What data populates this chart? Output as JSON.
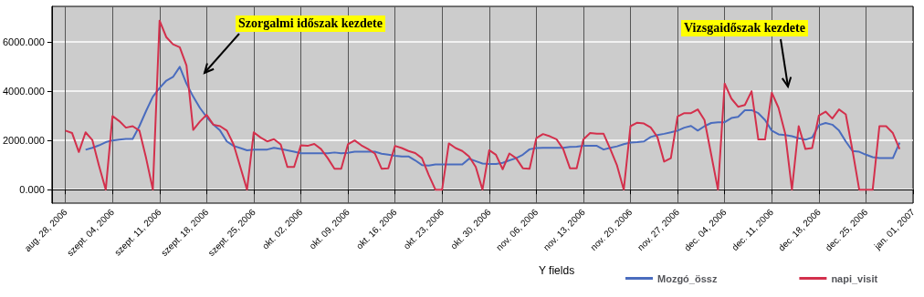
{
  "chart_data": {
    "type": "line",
    "x": [
      "2006-08-28",
      "2006-08-29",
      "2006-08-30",
      "2006-08-31",
      "2006-09-01",
      "2006-09-02",
      "2006-09-03",
      "2006-09-04",
      "2006-09-05",
      "2006-09-06",
      "2006-09-07",
      "2006-09-08",
      "2006-09-09",
      "2006-09-10",
      "2006-09-11",
      "2006-09-12",
      "2006-09-13",
      "2006-09-14",
      "2006-09-15",
      "2006-09-16",
      "2006-09-17",
      "2006-09-18",
      "2006-09-19",
      "2006-09-20",
      "2006-09-21",
      "2006-09-22",
      "2006-09-23",
      "2006-09-24",
      "2006-09-25",
      "2006-09-26",
      "2006-09-27",
      "2006-09-28",
      "2006-09-29",
      "2006-09-30",
      "2006-10-01",
      "2006-10-02",
      "2006-10-03",
      "2006-10-04",
      "2006-10-05",
      "2006-10-06",
      "2006-10-07",
      "2006-10-08",
      "2006-10-09",
      "2006-10-10",
      "2006-10-11",
      "2006-10-12",
      "2006-10-13",
      "2006-10-14",
      "2006-10-15",
      "2006-10-16",
      "2006-10-17",
      "2006-10-18",
      "2006-10-19",
      "2006-10-20",
      "2006-10-21",
      "2006-10-22",
      "2006-10-23",
      "2006-10-24",
      "2006-10-25",
      "2006-10-26",
      "2006-10-27",
      "2006-10-28",
      "2006-10-29",
      "2006-10-30",
      "2006-10-31",
      "2006-11-01",
      "2006-11-02",
      "2006-11-03",
      "2006-11-04",
      "2006-11-05",
      "2006-11-06",
      "2006-11-07",
      "2006-11-08",
      "2006-11-09",
      "2006-11-10",
      "2006-11-11",
      "2006-11-12",
      "2006-11-13",
      "2006-11-14",
      "2006-11-15",
      "2006-11-16",
      "2006-11-17",
      "2006-11-18",
      "2006-11-19",
      "2006-11-20",
      "2006-11-21",
      "2006-11-22",
      "2006-11-23",
      "2006-11-24",
      "2006-11-25",
      "2006-11-26",
      "2006-11-27",
      "2006-11-28",
      "2006-11-29",
      "2006-11-30",
      "2006-12-01",
      "2006-12-02",
      "2006-12-03",
      "2006-12-04",
      "2006-12-05",
      "2006-12-06",
      "2006-12-07",
      "2006-12-08",
      "2006-12-09",
      "2006-12-10",
      "2006-12-11",
      "2006-12-12",
      "2006-12-13",
      "2006-12-14",
      "2006-12-15",
      "2006-12-16",
      "2006-12-17",
      "2006-12-18",
      "2006-12-19",
      "2006-12-20",
      "2006-12-21",
      "2006-12-22",
      "2006-12-23",
      "2006-12-24",
      "2006-12-25",
      "2006-12-26",
      "2006-12-27",
      "2006-12-28",
      "2006-12-29",
      "2006-12-30"
    ],
    "series": [
      {
        "name": "Mozgó_össz",
        "color": "#4a6cbe",
        "values": [
          null,
          null,
          null,
          1620,
          1700,
          1800,
          1930,
          2000,
          2030,
          2060,
          2060,
          2580,
          3200,
          3780,
          4130,
          4430,
          4580,
          4990,
          4310,
          3780,
          3320,
          2950,
          2640,
          2400,
          1960,
          1780,
          1690,
          1600,
          1630,
          1630,
          1630,
          1700,
          1650,
          1600,
          1540,
          1480,
          1480,
          1480,
          1480,
          1480,
          1510,
          1480,
          1500,
          1540,
          1540,
          1540,
          1540,
          1460,
          1420,
          1380,
          1350,
          1350,
          1190,
          1000,
          980,
          1020,
          1020,
          1020,
          1020,
          1020,
          1260,
          1160,
          1060,
          1040,
          1040,
          1090,
          1190,
          1280,
          1420,
          1640,
          1690,
          1700,
          1700,
          1700,
          1700,
          1740,
          1750,
          1780,
          1780,
          1780,
          1630,
          1700,
          1760,
          1850,
          1910,
          1930,
          1960,
          2140,
          2220,
          2270,
          2330,
          2400,
          2520,
          2590,
          2400,
          2580,
          2710,
          2740,
          2740,
          2910,
          2960,
          3230,
          3230,
          3110,
          2830,
          2400,
          2250,
          2220,
          2170,
          2090,
          2030,
          2120,
          2620,
          2710,
          2640,
          2400,
          1960,
          1570,
          1540,
          1420,
          1320,
          1280,
          1280,
          1280,
          1910
        ]
      },
      {
        "name": "napi_visit",
        "color": "#d3304c",
        "values": [
          2400,
          2300,
          1530,
          2330,
          2020,
          970,
          0,
          2990,
          2790,
          2520,
          2580,
          2400,
          1280,
          0,
          6870,
          6200,
          5910,
          5790,
          5050,
          2430,
          2770,
          3040,
          2640,
          2580,
          2400,
          1840,
          920,
          0,
          2330,
          2120,
          1960,
          2050,
          1840,
          920,
          920,
          1800,
          1780,
          1860,
          1650,
          1280,
          850,
          850,
          1840,
          2000,
          1800,
          1650,
          1470,
          850,
          870,
          1780,
          1690,
          1570,
          1490,
          1280,
          600,
          0,
          0,
          1880,
          1690,
          1570,
          1350,
          920,
          0,
          1600,
          1420,
          830,
          1470,
          1280,
          870,
          850,
          2090,
          2260,
          2170,
          2050,
          1650,
          870,
          870,
          2040,
          2300,
          2270,
          2270,
          1650,
          980,
          0,
          2580,
          2720,
          2690,
          2530,
          2140,
          1140,
          1280,
          2970,
          3110,
          3110,
          3260,
          2830,
          1420,
          0,
          4310,
          3700,
          3370,
          3440,
          4000,
          2040,
          2040,
          3940,
          3330,
          2270,
          0,
          2580,
          1650,
          1690,
          3010,
          3170,
          2890,
          3260,
          3060,
          1600,
          0,
          0,
          0,
          2580,
          2580,
          2300,
          1650
        ]
      }
    ],
    "xlim": [
      "2006-08-26",
      "2007-01-01"
    ],
    "xticks": [
      {
        "value": "2006-08-28",
        "label": "aug. 28, 2006"
      },
      {
        "value": "2006-09-04",
        "label": "szept. 04, 2006"
      },
      {
        "value": "2006-09-11",
        "label": "szept. 11, 2006"
      },
      {
        "value": "2006-09-18",
        "label": "szept. 18, 2006"
      },
      {
        "value": "2006-09-25",
        "label": "szept. 25, 2006"
      },
      {
        "value": "2006-10-02",
        "label": "okt. 02, 2006"
      },
      {
        "value": "2006-10-09",
        "label": "okt. 09, 2006"
      },
      {
        "value": "2006-10-16",
        "label": "okt. 16, 2006"
      },
      {
        "value": "2006-10-23",
        "label": "okt. 23, 2006"
      },
      {
        "value": "2006-10-30",
        "label": "okt. 30, 2006"
      },
      {
        "value": "2006-11-06",
        "label": "nov. 06, 2006"
      },
      {
        "value": "2006-11-13",
        "label": "nov. 13, 2006"
      },
      {
        "value": "2006-11-20",
        "label": "nov. 20, 2006"
      },
      {
        "value": "2006-11-27",
        "label": "nov. 27, 2006"
      },
      {
        "value": "2006-12-04",
        "label": "dec. 04, 2006"
      },
      {
        "value": "2006-12-11",
        "label": "dec. 11, 2006"
      },
      {
        "value": "2006-12-18",
        "label": "dec. 18, 2006"
      },
      {
        "value": "2006-12-25",
        "label": "dec. 25, 2006"
      },
      {
        "value": "2007-01-01",
        "label": "jan. 01, 2007"
      }
    ],
    "ylim": [
      -550,
      7450
    ],
    "yticks": [
      {
        "value": 0,
        "label": "0.000"
      },
      {
        "value": 2000,
        "label": "2000.000"
      },
      {
        "value": 4000,
        "label": "4000.000"
      },
      {
        "value": 6000,
        "label": "6000.000"
      }
    ],
    "grid": true,
    "legend": "bottom",
    "legend_title": "Y fields",
    "marker": "none",
    "line_style": "solid",
    "annotations": [
      "Szorgalmi időszak kezdete",
      "Vizsgaidőszak kezdete"
    ]
  }
}
